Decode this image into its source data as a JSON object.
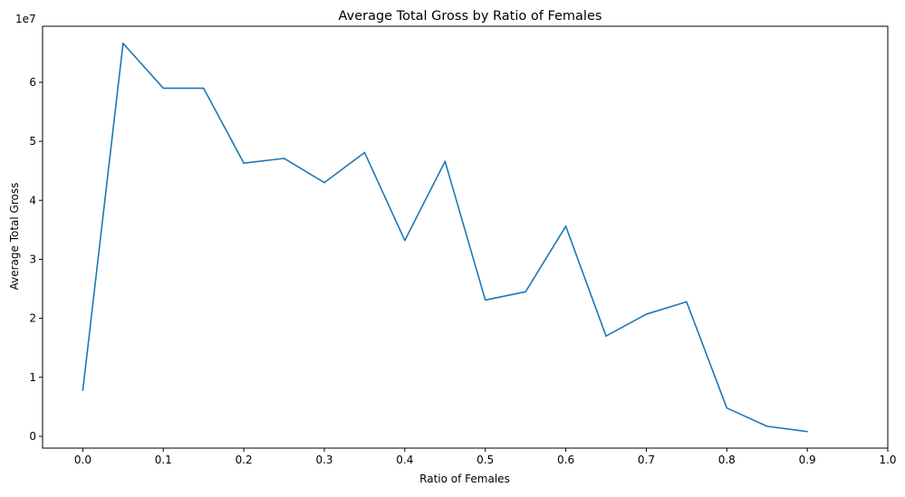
{
  "chart_data": {
    "type": "line",
    "title": "Average Total Gross by Ratio of Females",
    "xlabel": "Ratio of Females",
    "ylabel": "Average Total Gross",
    "y_scale_label": "1e7",
    "xlim": [
      -0.05,
      1.0
    ],
    "ylim": [
      -2000000,
      69500000
    ],
    "x_ticks": [
      0.0,
      0.1,
      0.2,
      0.3,
      0.4,
      0.5,
      0.6,
      0.7,
      0.8,
      0.9,
      1.0
    ],
    "x_tick_labels": [
      "0.0",
      "0.1",
      "0.2",
      "0.3",
      "0.4",
      "0.5",
      "0.6",
      "0.7",
      "0.8",
      "0.9",
      "1.0"
    ],
    "y_ticks": [
      0,
      10000000,
      20000000,
      30000000,
      40000000,
      50000000,
      60000000
    ],
    "y_tick_labels": [
      "0",
      "1",
      "2",
      "3",
      "4",
      "5",
      "6"
    ],
    "grid": false,
    "series": [
      {
        "color": "#1f77b4",
        "x": [
          0.0,
          0.05,
          0.1,
          0.15,
          0.2,
          0.25,
          0.3,
          0.35,
          0.4,
          0.45,
          0.5,
          0.55,
          0.6,
          0.65,
          0.7,
          0.75,
          0.8,
          0.85,
          0.9
        ],
        "y": [
          7800000,
          66600000,
          59000000,
          59000000,
          46300000,
          47100000,
          43000000,
          48100000,
          33200000,
          46600000,
          23100000,
          24500000,
          35600000,
          17000000,
          20700000,
          22800000,
          4800000,
          1700000,
          800000
        ]
      }
    ]
  }
}
